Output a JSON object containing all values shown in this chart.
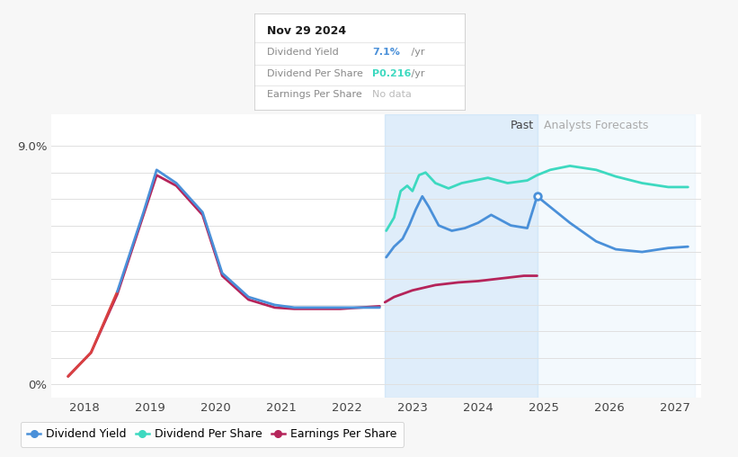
{
  "tooltip_date": "Nov 29 2024",
  "tooltip_div_yield": "7.1%",
  "tooltip_div_per_share": "P0.216",
  "tooltip_eps": "No data",
  "past_label": "Past",
  "forecast_label": "Analysts Forecasts",
  "shade_start": 2022.58,
  "shade_mid": 2024.9,
  "shade_end": 2027.3,
  "legend_items": [
    {
      "label": "Dividend Yield",
      "color": "#4A90D9"
    },
    {
      "label": "Dividend Per Share",
      "color": "#3DD9C0"
    },
    {
      "label": "Earnings Per Share",
      "color": "#B5245A"
    }
  ],
  "div_yield_pre": {
    "color": "#4A90D9",
    "x": [
      2017.75,
      2018.1,
      2018.5,
      2018.9,
      2019.1,
      2019.4,
      2019.8,
      2020.1,
      2020.5,
      2020.9,
      2021.2,
      2021.6,
      2021.9,
      2022.2,
      2022.5
    ],
    "y": [
      0.3,
      1.2,
      3.5,
      6.5,
      8.1,
      7.6,
      6.5,
      4.2,
      3.3,
      3.0,
      2.9,
      2.9,
      2.9,
      2.9,
      2.9
    ]
  },
  "div_yield_post": {
    "color": "#4A90D9",
    "x": [
      2022.6,
      2022.72,
      2022.85,
      2022.95,
      2023.05,
      2023.15,
      2023.25,
      2023.4,
      2023.6,
      2023.8,
      2024.0,
      2024.2,
      2024.5,
      2024.75,
      2024.9,
      2025.1,
      2025.4,
      2025.8,
      2026.1,
      2026.5,
      2026.9,
      2027.2
    ],
    "y": [
      4.8,
      5.2,
      5.5,
      6.0,
      6.6,
      7.1,
      6.7,
      6.0,
      5.8,
      5.9,
      6.1,
      6.4,
      6.0,
      5.9,
      7.1,
      6.7,
      6.1,
      5.4,
      5.1,
      5.0,
      5.15,
      5.2
    ]
  },
  "div_per_share": {
    "color": "#3DD9C0",
    "x": [
      2022.6,
      2022.72,
      2022.82,
      2022.92,
      2023.0,
      2023.1,
      2023.2,
      2023.35,
      2023.55,
      2023.75,
      2023.95,
      2024.15,
      2024.45,
      2024.75,
      2024.9,
      2025.1,
      2025.4,
      2025.8,
      2026.1,
      2026.5,
      2026.9,
      2027.2
    ],
    "y": [
      5.8,
      6.3,
      7.3,
      7.5,
      7.3,
      7.9,
      8.0,
      7.6,
      7.4,
      7.6,
      7.7,
      7.8,
      7.6,
      7.7,
      7.9,
      8.1,
      8.25,
      8.1,
      7.85,
      7.6,
      7.45,
      7.45
    ]
  },
  "eps_pre": {
    "color": "#B5245A",
    "x": [
      2017.75,
      2018.1,
      2018.5,
      2018.9,
      2019.1,
      2019.4,
      2019.8,
      2020.1,
      2020.5,
      2020.9,
      2021.2,
      2021.6,
      2021.9,
      2022.2,
      2022.5
    ],
    "y": [
      0.3,
      1.2,
      3.4,
      6.4,
      7.9,
      7.5,
      6.4,
      4.1,
      3.2,
      2.9,
      2.85,
      2.85,
      2.85,
      2.9,
      2.95
    ]
  },
  "eps_post": {
    "color": "#B5245A",
    "x": [
      2022.58,
      2022.72,
      2023.0,
      2023.35,
      2023.7,
      2024.0,
      2024.35,
      2024.7,
      2024.9
    ],
    "y": [
      3.1,
      3.3,
      3.55,
      3.75,
      3.85,
      3.9,
      4.0,
      4.1,
      4.1
    ]
  },
  "xlim": [
    2017.5,
    2027.4
  ],
  "ylim": [
    -0.5,
    10.2
  ],
  "yticks": [
    0,
    1,
    2,
    3,
    4,
    5,
    6,
    7,
    8,
    9
  ],
  "xticks": [
    2018,
    2019,
    2020,
    2021,
    2022,
    2023,
    2024,
    2025,
    2026,
    2027
  ],
  "dot_x": 2024.9,
  "dot_y": 7.1
}
